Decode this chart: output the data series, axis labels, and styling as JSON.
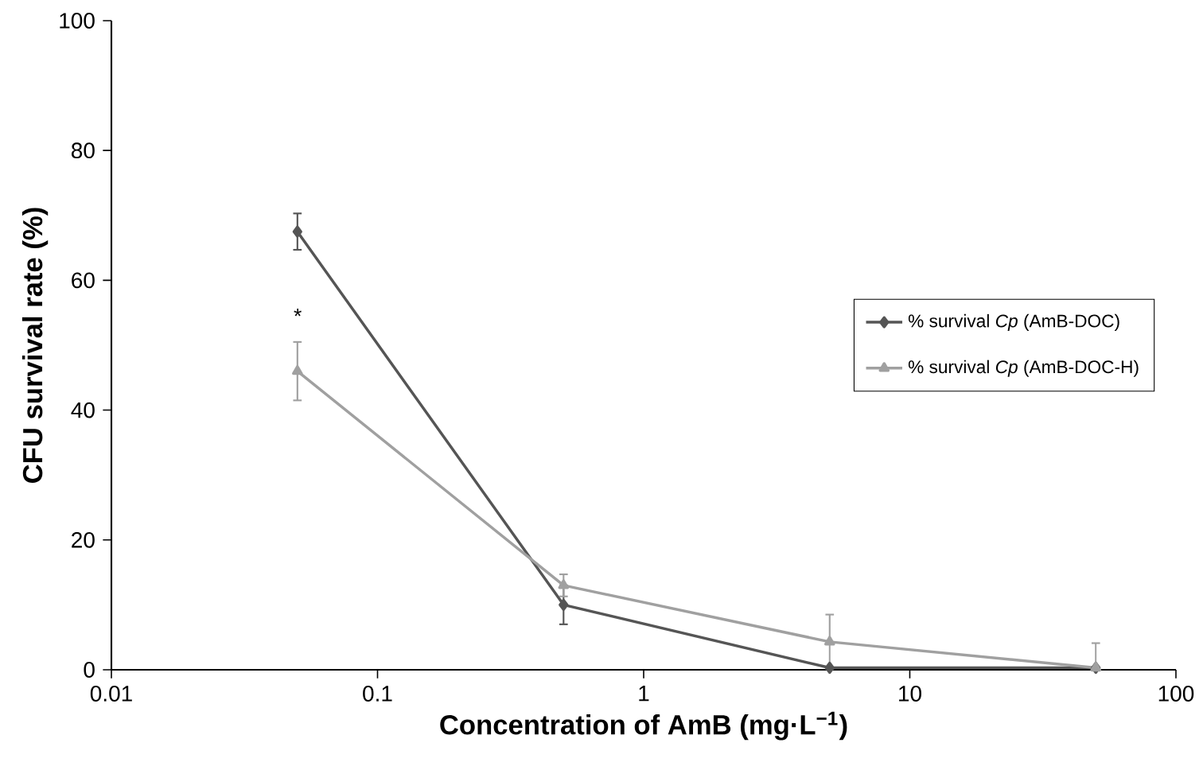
{
  "chart_data": {
    "type": "line",
    "xlabel": "Concentration of AmB (mg·L$^{−1}$)",
    "ylabel": "CFU survival rate (%)",
    "x": [
      0.05,
      0.5,
      5,
      50
    ],
    "log": "x",
    "xlim": [
      0.01,
      100
    ],
    "xticks": [
      0.01,
      0.1,
      1,
      10,
      100
    ],
    "ylim": [
      0,
      100
    ],
    "yticks": [
      0,
      20,
      40,
      60,
      80,
      100
    ],
    "grid": false,
    "legend": "right",
    "line_style": "solid",
    "series": [
      {
        "name": "% survival *Cp* (AmB-DOC)",
        "color": "#555555",
        "marker": "diamond",
        "values": [
          67.5,
          10,
          0.3,
          0.3
        ],
        "errors": [
          2.8,
          3,
          null,
          null
        ]
      },
      {
        "name": "% survival *Cp* (AmB-DOC-H)",
        "color": "#a0a0a0",
        "marker": "triangle",
        "values": [
          46,
          13,
          4.3,
          0.3
        ],
        "errors": [
          4.5,
          1.7,
          4.2,
          3.8
        ]
      }
    ],
    "annotations": [
      "*"
    ]
  }
}
